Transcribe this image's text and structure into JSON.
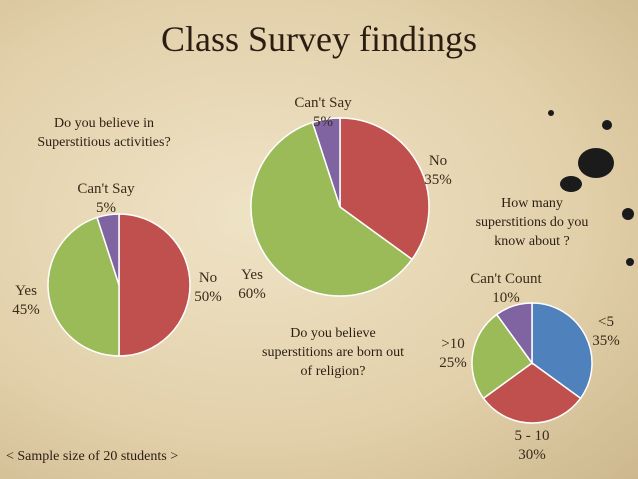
{
  "title": "Class Survey findings",
  "footnote": "< Sample size of 20 students >",
  "chart_data": [
    {
      "type": "pie",
      "title": "Do you believe in Superstitious activities?",
      "slices": [
        {
          "label": "No",
          "value": 50,
          "display": "50%",
          "color": "#c0504d"
        },
        {
          "label": "Yes",
          "value": 45,
          "display": "45%",
          "color": "#9bbb59"
        },
        {
          "label": "Can't Say",
          "value": 5,
          "display": "5%",
          "color": "#8064a2"
        }
      ]
    },
    {
      "type": "pie",
      "title": "Do you believe superstitions are born out of religion?",
      "slices": [
        {
          "label": "No",
          "value": 35,
          "display": "35%",
          "color": "#c0504d"
        },
        {
          "label": "Yes",
          "value": 60,
          "display": "60%",
          "color": "#9bbb59"
        },
        {
          "label": "Can't Say",
          "value": 5,
          "display": "5%",
          "color": "#8064a2"
        }
      ]
    },
    {
      "type": "pie",
      "title": "How many superstitions do you know about ?",
      "slices": [
        {
          "label": "<5",
          "value": 35,
          "display": "35%",
          "color": "#4f81bd"
        },
        {
          "label": "5 - 10",
          "value": 30,
          "display": "30%",
          "color": "#c0504d"
        },
        {
          "label": ">10",
          "value": 25,
          "display": "25%",
          "color": "#9bbb59"
        },
        {
          "label": "Can't Count",
          "value": 10,
          "display": "10%",
          "color": "#8064a2"
        }
      ]
    }
  ]
}
